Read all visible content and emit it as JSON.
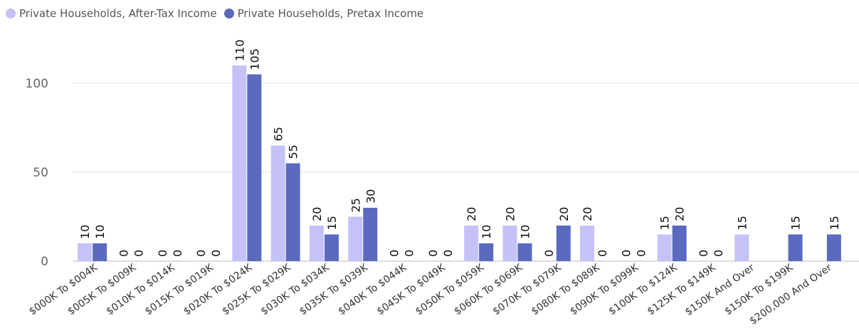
{
  "chart_data": {
    "type": "bar",
    "categories": [
      "$000K To $004K",
      "$005K To $009K",
      "$010K To $014K",
      "$015K To $019K",
      "$020K To $024K",
      "$025K To $029K",
      "$030K To $034K",
      "$035K To $039K",
      "$040K To $044K",
      "$045K To $049K",
      "$050K To $059K",
      "$060K To $069K",
      "$070K To $079K",
      "$080K To $089K",
      "$090K To $099K",
      "$100K To $124K",
      "$125K To $149K",
      "$150K And Over",
      "$150K To $199K",
      "$200,000 And Over"
    ],
    "series": [
      {
        "name": "Private Households, After-Tax Income",
        "color": "#c5c2f8",
        "values": [
          10,
          0,
          0,
          0,
          110,
          65,
          20,
          25,
          0,
          0,
          20,
          20,
          0,
          20,
          0,
          15,
          0,
          15,
          null,
          null
        ],
        "labels": [
          "10",
          "0",
          "0",
          "0",
          "110",
          "65",
          "20",
          "25",
          "0",
          "0",
          "20",
          "20",
          "0",
          "20",
          "0",
          "15",
          "0",
          "15",
          "",
          ""
        ]
      },
      {
        "name": "Private Households, Pretax Income",
        "color": "#5a6abf",
        "values": [
          10,
          0,
          0,
          0,
          105,
          55,
          15,
          30,
          0,
          0,
          10,
          10,
          20,
          0,
          0,
          20,
          0,
          null,
          15,
          15
        ],
        "labels": [
          "10",
          "0",
          "0",
          "0",
          "105",
          "55",
          "15",
          "30",
          "0",
          "0",
          "10",
          "10",
          "20",
          "0",
          "0",
          "20",
          "0",
          "",
          "15",
          "15"
        ]
      }
    ],
    "yticks": [
      0,
      50,
      100
    ],
    "ylim": [
      0,
      120
    ],
    "grid": true,
    "legend_position": "top-left"
  }
}
